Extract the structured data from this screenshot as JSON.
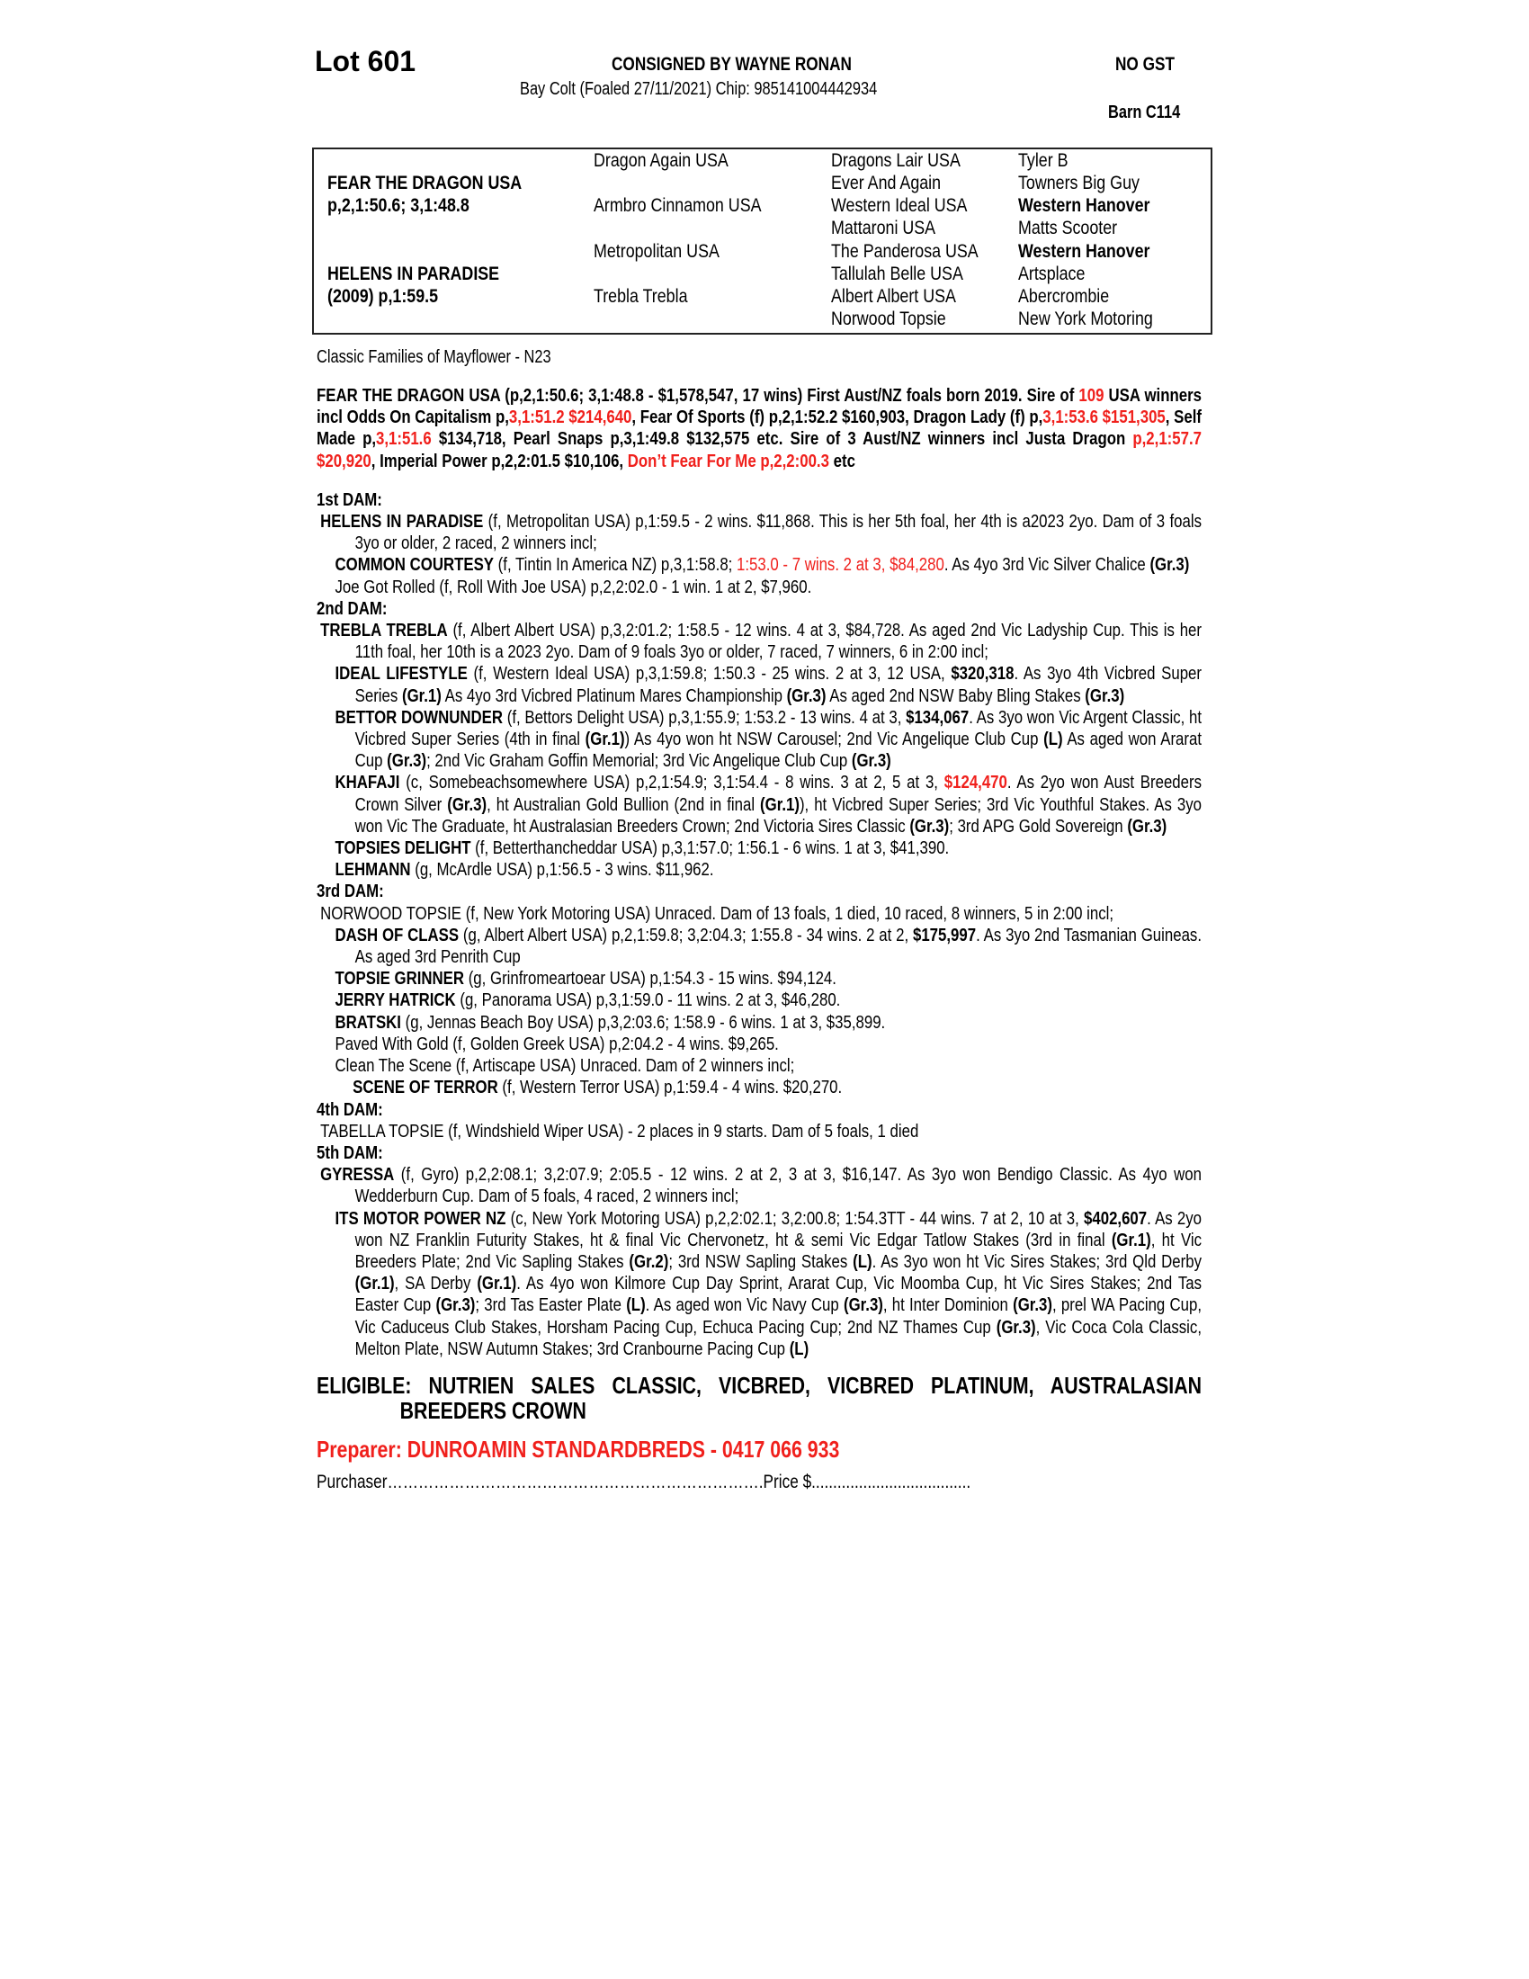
{
  "header": {
    "lot": "Lot 601",
    "consigned": "CONSIGNED BY WAYNE RONAN",
    "gst": "NO GST",
    "description": "Bay Colt (Foaled 27/11/2021) Chip: 985141004442934",
    "barn": "Barn C114"
  },
  "pedigree": {
    "sire_name": "FEAR THE DRAGON USA",
    "sire_record": "p,2,1:50.6; 3,1:48.8",
    "dam_name": "HELENS IN PARADISE",
    "dam_record": "(2009) p,1:59.5",
    "gen2": [
      "Dragon Again USA",
      "Armbro Cinnamon USA",
      "Metropolitan USA",
      "Trebla Trebla"
    ],
    "gen3": [
      "Dragons Lair USA",
      "Ever And Again",
      "Western Ideal USA",
      "Mattaroni USA",
      "The Panderosa USA",
      "Tallulah Belle USA",
      "Albert Albert USA",
      "Norwood Topsie"
    ],
    "gen4": [
      "Tyler B",
      "Towners Big Guy",
      "Western Hanover",
      "Matts Scooter",
      "Western Hanover",
      "Artsplace",
      "Abercrombie",
      "New York Motoring"
    ]
  },
  "family": "Classic Families of Mayflower - N23",
  "colors": {
    "highlight": "#f0201c"
  },
  "sire_paragraph": [
    [
      "FEAR THE DRAGON USA (p,2,1:50.6; 3,1:48.8 - $1,578,547, 17 wins) First Aust/NZ foals born 2019. Sire of ",
      ""
    ],
    [
      "109",
      "r"
    ],
    [
      " USA winners incl Odds On Capitalism p,",
      ""
    ],
    [
      "3,1:51.2 $214,640",
      "r"
    ],
    [
      ", Fear Of Sports (f) p,2,1:52.2 $160,903, Dragon Lady (f) p,",
      ""
    ],
    [
      "3,1:53.6 $151,305",
      "r"
    ],
    [
      ", Self Made p,",
      ""
    ],
    [
      "3,1:51.6",
      "r"
    ],
    [
      " $134,718, Pearl Snaps p,3,1:49.8 $132,575 etc. Sire of 3 Aust/NZ winners incl Justa Dragon ",
      ""
    ],
    [
      "p,2,1:57.7 $20,920",
      "r"
    ],
    [
      ", Imperial Power p,2,2:01.5 $10,106, ",
      ""
    ],
    [
      "Don’t Fear For Me p,2,2:00.3",
      "r"
    ],
    [
      " etc",
      ""
    ]
  ],
  "dams": [
    {
      "heading": "1st DAM:",
      "entries": [
        {
          "level": 0,
          "segments": [
            [
              "HELENS IN PARADISE",
              "b"
            ],
            [
              " (f, Metropolitan USA) p,1:59.5 - 2 wins. $11,868. This is her 5th foal, her 4th is a2023 2yo. Dam of 3 foals 3yo or older, 2 raced, 2 winners incl;",
              ""
            ]
          ]
        },
        {
          "level": 1,
          "segments": [
            [
              "COMMON COURTESY",
              "b"
            ],
            [
              " (f, Tintin In America NZ) p,3,1:58.8; ",
              ""
            ],
            [
              "1:53.0 - 7 wins. 2 at 3, $84,280",
              "r"
            ],
            [
              ". As 4yo 3rd Vic Silver Chalice ",
              ""
            ],
            [
              "(Gr.3)",
              "b"
            ]
          ]
        },
        {
          "level": 1,
          "segments": [
            [
              "Joe Got Rolled (f, Roll With Joe USA) p,2,2:02.0 - 1 win. 1 at 2, $7,960.",
              ""
            ]
          ]
        }
      ]
    },
    {
      "heading": "2nd DAM:",
      "entries": [
        {
          "level": 0,
          "segments": [
            [
              "TREBLA TREBLA",
              "b"
            ],
            [
              " (f, Albert Albert USA) p,3,2:01.2; 1:58.5 - 12 wins. 4 at 3, $84,728. As aged 2nd Vic Ladyship Cup. This is her 11th foal, her 10th is a 2023 2yo. Dam of 9 foals 3yo or older, 7 raced, 7 winners, 6 in 2:00 incl;",
              ""
            ]
          ]
        },
        {
          "level": 1,
          "segments": [
            [
              "IDEAL LIFESTYLE",
              "b"
            ],
            [
              " (f, Western Ideal USA) p,3,1:59.8; 1:50.3 - 25 wins. 2 at 3, 12 USA, ",
              ""
            ],
            [
              "$320,318",
              "b"
            ],
            [
              ". As 3yo 4th Vicbred Super Series ",
              ""
            ],
            [
              "(Gr.1)",
              "b"
            ],
            [
              " As 4yo 3rd Vicbred Platinum Mares Championship ",
              ""
            ],
            [
              "(Gr.3)",
              "b"
            ],
            [
              " As aged 2nd NSW Baby Bling Stakes ",
              ""
            ],
            [
              "(Gr.3)",
              "b"
            ]
          ]
        },
        {
          "level": 1,
          "segments": [
            [
              "BETTOR DOWNUNDER",
              "b"
            ],
            [
              " (f, Bettors Delight USA) p,3,1:55.9; 1:53.2 - 13 wins. 4 at 3, ",
              ""
            ],
            [
              "$134,067",
              "b"
            ],
            [
              ". As 3yo won Vic Argent Classic, ht Vicbred Super Series (4th in final ",
              ""
            ],
            [
              "(Gr.1)",
              "b"
            ],
            [
              ") As 4yo won ht NSW Carousel; 2nd Vic Angelique Club Cup ",
              ""
            ],
            [
              "(L)",
              "b"
            ],
            [
              " As aged won Ararat Cup ",
              ""
            ],
            [
              "(Gr.3)",
              "b"
            ],
            [
              "; 2nd Vic Graham Goffin Memorial; 3rd Vic Angelique Club Cup ",
              ""
            ],
            [
              "(Gr.3)",
              "b"
            ]
          ]
        },
        {
          "level": 1,
          "segments": [
            [
              "KHAFAJI",
              "b"
            ],
            [
              " (c, Somebeachsomewhere USA) p,2,1:54.9; 3,1:54.4 - 8 wins. 3 at 2, 5 at 3, ",
              ""
            ],
            [
              "$124,470",
              "br"
            ],
            [
              ". As 2yo won Aust Breeders Crown Silver ",
              ""
            ],
            [
              "(Gr.3)",
              "b"
            ],
            [
              ", ht Australian Gold Bullion (2nd in final ",
              ""
            ],
            [
              "(Gr.1)",
              "b"
            ],
            [
              "), ht Vicbred Super Series; 3rd Vic Youthful Stakes. As 3yo won Vic The Graduate, ht Australasian Breeders Crown; 2nd Victoria Sires Classic ",
              ""
            ],
            [
              "(Gr.3)",
              "b"
            ],
            [
              "; 3rd APG Gold Sovereign ",
              ""
            ],
            [
              "(Gr.3)",
              "b"
            ]
          ]
        },
        {
          "level": 1,
          "segments": [
            [
              "TOPSIES DELIGHT",
              "b"
            ],
            [
              " (f, Betterthancheddar USA) p,3,1:57.0; 1:56.1 - 6 wins. 1 at 3, $41,390.",
              ""
            ]
          ]
        },
        {
          "level": 1,
          "segments": [
            [
              "LEHMANN",
              "b"
            ],
            [
              " (g, McArdle USA) p,1:56.5 - 3 wins. $11,962.",
              ""
            ]
          ]
        }
      ]
    },
    {
      "heading": "3rd DAM:",
      "entries": [
        {
          "level": 0,
          "segments": [
            [
              "NORWOOD TOPSIE (f, New York Motoring USA) Unraced. Dam of 13 foals, 1 died, 10 raced, 8 winners, 5 in 2:00 incl;",
              ""
            ]
          ]
        },
        {
          "level": 1,
          "segments": [
            [
              "DASH OF CLASS",
              "b"
            ],
            [
              " (g, Albert Albert USA) p,2,1:59.8; 3,2:04.3; 1:55.8 - 34 wins. 2 at 2, ",
              ""
            ],
            [
              "$175,997",
              "b"
            ],
            [
              ". As 3yo 2nd Tasmanian Guineas. As aged 3rd Penrith Cup",
              ""
            ]
          ]
        },
        {
          "level": 1,
          "segments": [
            [
              "TOPSIE GRINNER",
              "b"
            ],
            [
              " (g, Grinfromeartoear USA) p,1:54.3 - 15 wins. $94,124.",
              ""
            ]
          ]
        },
        {
          "level": 1,
          "segments": [
            [
              "JERRY HATRICK",
              "b"
            ],
            [
              " (g, Panorama USA) p,3,1:59.0 - 11 wins. 2 at 3, $46,280.",
              ""
            ]
          ]
        },
        {
          "level": 1,
          "segments": [
            [
              "BRATSKI",
              "b"
            ],
            [
              " (g, Jennas Beach Boy USA) p,3,2:03.6; 1:58.9 - 6 wins. 1 at 3, $35,899.",
              ""
            ]
          ]
        },
        {
          "level": 1,
          "segments": [
            [
              "Paved With Gold (f, Golden Greek USA) p,2:04.2 - 4 wins. $9,265.",
              ""
            ]
          ]
        },
        {
          "level": 1,
          "segments": [
            [
              "Clean The Scene (f, Artiscape USA) Unraced. Dam of 2 winners incl;",
              ""
            ]
          ]
        },
        {
          "level": 2,
          "segments": [
            [
              "SCENE OF TERROR",
              "b"
            ],
            [
              " (f, Western Terror USA) p,1:59.4 - 4 wins. $20,270.",
              ""
            ]
          ]
        }
      ]
    },
    {
      "heading": "4th DAM:",
      "entries": [
        {
          "level": 0,
          "segments": [
            [
              "TABELLA TOPSIE (f, Windshield Wiper USA) - 2 places in 9 starts. Dam of 5 foals, 1 died",
              ""
            ]
          ]
        }
      ]
    },
    {
      "heading": "5th DAM:",
      "entries": [
        {
          "level": 0,
          "segments": [
            [
              "GYRESSA",
              "b"
            ],
            [
              " (f, Gyro) p,2,2:08.1; 3,2:07.9; 2:05.5 - 12 wins. 2 at 2, 3 at 3, $16,147. As 3yo won Bendigo Classic. As 4yo won Wedderburn Cup. Dam of 5 foals, 4 raced, 2 winners incl;",
              ""
            ]
          ]
        },
        {
          "level": 1,
          "segments": [
            [
              "ITS MOTOR POWER NZ",
              "b"
            ],
            [
              " (c, New York Motoring USA) p,2,2:02.1; 3,2:00.8; 1:54.3TT - 44 wins. 7 at 2, 10 at 3, ",
              ""
            ],
            [
              "$402,607",
              "b"
            ],
            [
              ". As 2yo won NZ Franklin Futurity Stakes, ht & final Vic Chervonetz, ht & semi Vic Edgar Tatlow Stakes (3rd in final ",
              ""
            ],
            [
              "(Gr.1)",
              "b"
            ],
            [
              ", ht Vic Breeders Plate; 2nd Vic Sapling Stakes ",
              ""
            ],
            [
              "(Gr.2)",
              "b"
            ],
            [
              "; 3rd NSW Sapling Stakes ",
              ""
            ],
            [
              "(L)",
              "b"
            ],
            [
              ". As 3yo won ht Vic Sires Stakes; 3rd Qld Derby ",
              ""
            ],
            [
              "(Gr.1)",
              "b"
            ],
            [
              ", SA Derby ",
              ""
            ],
            [
              "(Gr.1)",
              "b"
            ],
            [
              ". As 4yo won Kilmore Cup Day Sprint, Ararat Cup, Vic Moomba Cup, ht Vic Sires Stakes; 2nd Tas Easter Cup ",
              ""
            ],
            [
              "(Gr.3)",
              "b"
            ],
            [
              "; 3rd Tas Easter Plate ",
              ""
            ],
            [
              "(L)",
              "b"
            ],
            [
              ". As aged won Vic Navy Cup ",
              ""
            ],
            [
              "(Gr.3)",
              "b"
            ],
            [
              ", ht Inter Dominion ",
              ""
            ],
            [
              "(Gr.3)",
              "b"
            ],
            [
              ", prel WA Pacing Cup, Vic Caduceus Club Stakes, Horsham Pacing Cup, Echuca Pacing Cup; 2nd NZ Thames Cup ",
              ""
            ],
            [
              "(Gr.3)",
              "b"
            ],
            [
              ", Vic Coca Cola Classic, Melton Plate, NSW Autumn Stakes; 3rd Cranbourne Pacing Cup ",
              ""
            ],
            [
              "(L)",
              "b"
            ]
          ]
        }
      ]
    }
  ],
  "eligible": "ELIGIBLE: NUTRIEN SALES CLASSIC, VICBRED, VICBRED PLATINUM, AUSTRALASIAN BREEDERS CROWN",
  "preparer": "Preparer: DUNROAMIN STANDARDBREDS - 0417 066 933",
  "purchaser": "Purchaser……………………………………………………………….Price $....................................."
}
